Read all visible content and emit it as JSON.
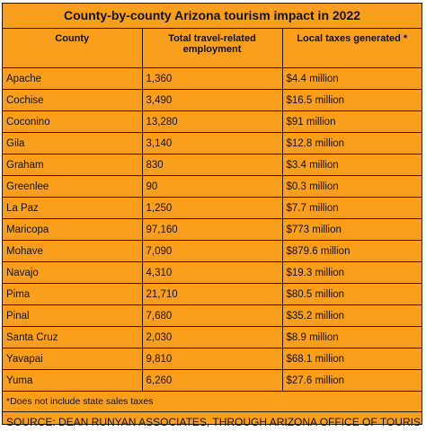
{
  "title": "County-by-county Arizona tourism impact in 2022",
  "columns": [
    "County",
    "Total travel-related employment",
    "Local taxes generated *"
  ],
  "rows": [
    {
      "county": "Apache",
      "employment": "1,360",
      "taxes": "$4.4 million"
    },
    {
      "county": "Cochise",
      "employment": "3,490",
      "taxes": "$16.5 million"
    },
    {
      "county": "Coconino",
      "employment": "13,280",
      "taxes": "$91 million"
    },
    {
      "county": "Gila",
      "employment": "3,140",
      "taxes": "$12.8 million"
    },
    {
      "county": "Graham",
      "employment": "830",
      "taxes": "$3.4 million"
    },
    {
      "county": "Greenlee",
      "employment": "90",
      "taxes": "$0.3 million"
    },
    {
      "county": "La Paz",
      "employment": "1,250",
      "taxes": "$7.7 million"
    },
    {
      "county": "Maricopa",
      "employment": "97,160",
      "taxes": "$773 million"
    },
    {
      "county": "Mohave",
      "employment": "7,090",
      "taxes": "$879.6 million"
    },
    {
      "county": "Navajo",
      "employment": "4,310",
      "taxes": "$19.3 million"
    },
    {
      "county": "Pima",
      "employment": "21,710",
      "taxes": "$80.5 million"
    },
    {
      "county": "Pinal",
      "employment": "7,680",
      "taxes": "$35.2 million"
    },
    {
      "county": "Santa Cruz",
      "employment": "2,030",
      "taxes": "$8.9 million"
    },
    {
      "county": "Yavapai",
      "employment": "9,810",
      "taxes": "$68.1 million"
    },
    {
      "county": "Yuma",
      "employment": "6,260",
      "taxes": "$27.6 million"
    }
  ],
  "footnote": "*Does not include state sales taxes",
  "source": "SOURCE: DEAN RUNYAN ASSOCIATES, THROUGH ARIZONA OFFICE OF TOURISM",
  "colors": {
    "background": "#f99f1c",
    "border": "#2a1a00"
  }
}
